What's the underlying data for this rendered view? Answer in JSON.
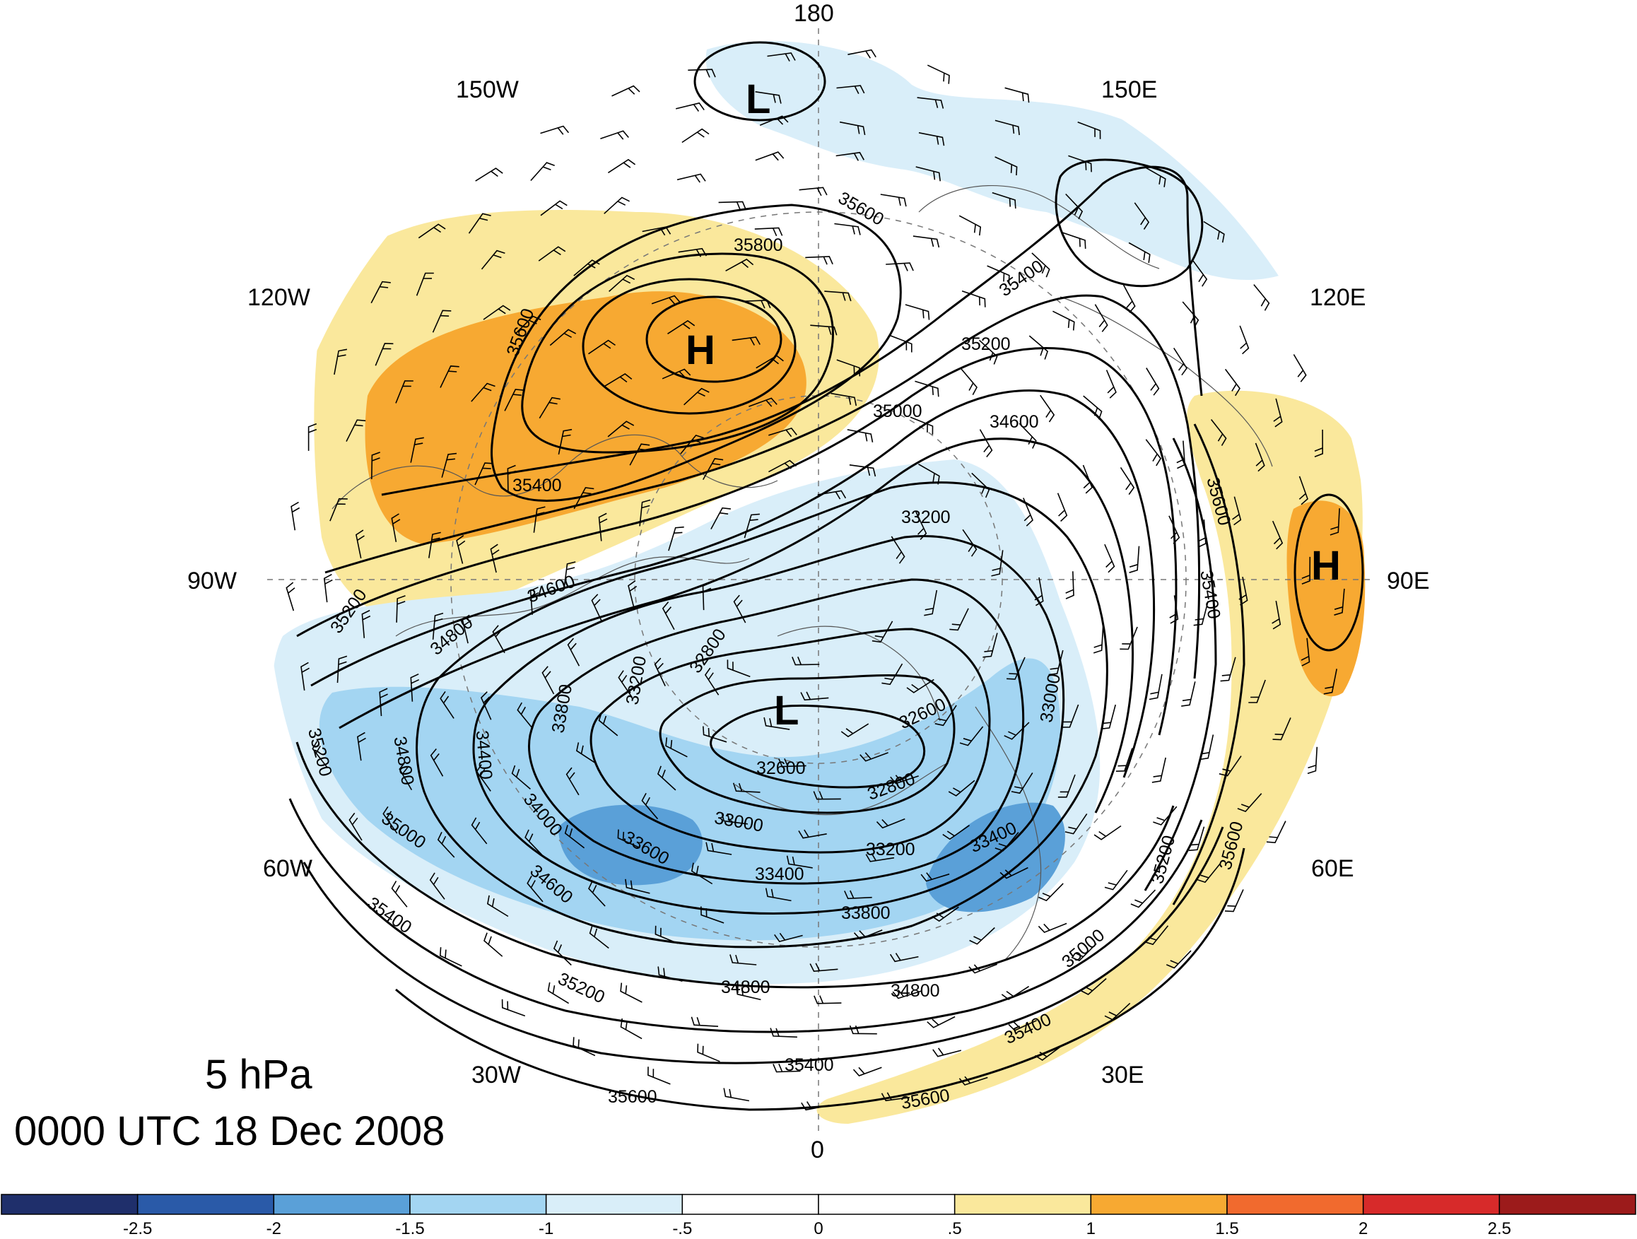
{
  "title": {
    "level": "5 hPa",
    "time": "0000 UTC 18 Dec 2008"
  },
  "longitude_labels": {
    "lon_180": "180",
    "lon_150w": "150W",
    "lon_150e": "150E",
    "lon_120w": "120W",
    "lon_120e": "120E",
    "lon_90w": "90W",
    "lon_90e": "90E",
    "lon_60w": "60W",
    "lon_60e": "60E",
    "lon_30w": "30W",
    "lon_30e": "30E",
    "lon_0": "0"
  },
  "centers": {
    "low_pacific": "L",
    "high_america": "H",
    "high_asia": "H",
    "low_polar": "L"
  },
  "contour_labels": {
    "c1": "35600",
    "c2": "35800",
    "c3": "35600",
    "c4": "35400",
    "c5": "35400",
    "c6": "35200",
    "c7": "35000",
    "c8": "34600",
    "c9": "33200",
    "c10": "35200",
    "c11": "34600",
    "c12": "34800",
    "c13": "33800",
    "c14": "33200",
    "c15": "32800",
    "c16": "32600",
    "c17": "33000",
    "c18": "35600",
    "c19": "35400",
    "c20": "35200",
    "c21": "34800",
    "c22": "34400",
    "c23": "32600",
    "c24": "32800",
    "c25": "34000",
    "c26": "33000",
    "c27": "33600",
    "c28": "33200",
    "c29": "33400",
    "c30": "33400",
    "c31": "35000",
    "c32": "34600",
    "c33": "33800",
    "c34": "35400",
    "c35": "35200",
    "c36": "34800",
    "c37": "34800",
    "c38": "35000",
    "c39": "35200",
    "c40": "35600",
    "c41": "35400",
    "c42": "35400",
    "c43": "35600",
    "c44": "35600"
  },
  "colorbar": {
    "labels": [
      "-2.5",
      "-2",
      "-1.5",
      "-1",
      "-.5",
      "0",
      ".5",
      "1",
      "1.5",
      "2",
      "2.5"
    ],
    "colors": [
      "#1f2f6b",
      "#2a5aa8",
      "#5aa0d8",
      "#a3d5f2",
      "#d9eef9",
      "#ffffff",
      "#ffffff",
      "#fae89c",
      "#f7a932",
      "#f16a2e",
      "#d72a2a",
      "#9c1b1b"
    ]
  },
  "shading_colors": {
    "neg_0_5": "#d9eef9",
    "neg_1": "#a3d5f2",
    "neg_1_5": "#5aa0d8",
    "pos_0_5": "#fae89c",
    "pos_1": "#f7a932"
  }
}
